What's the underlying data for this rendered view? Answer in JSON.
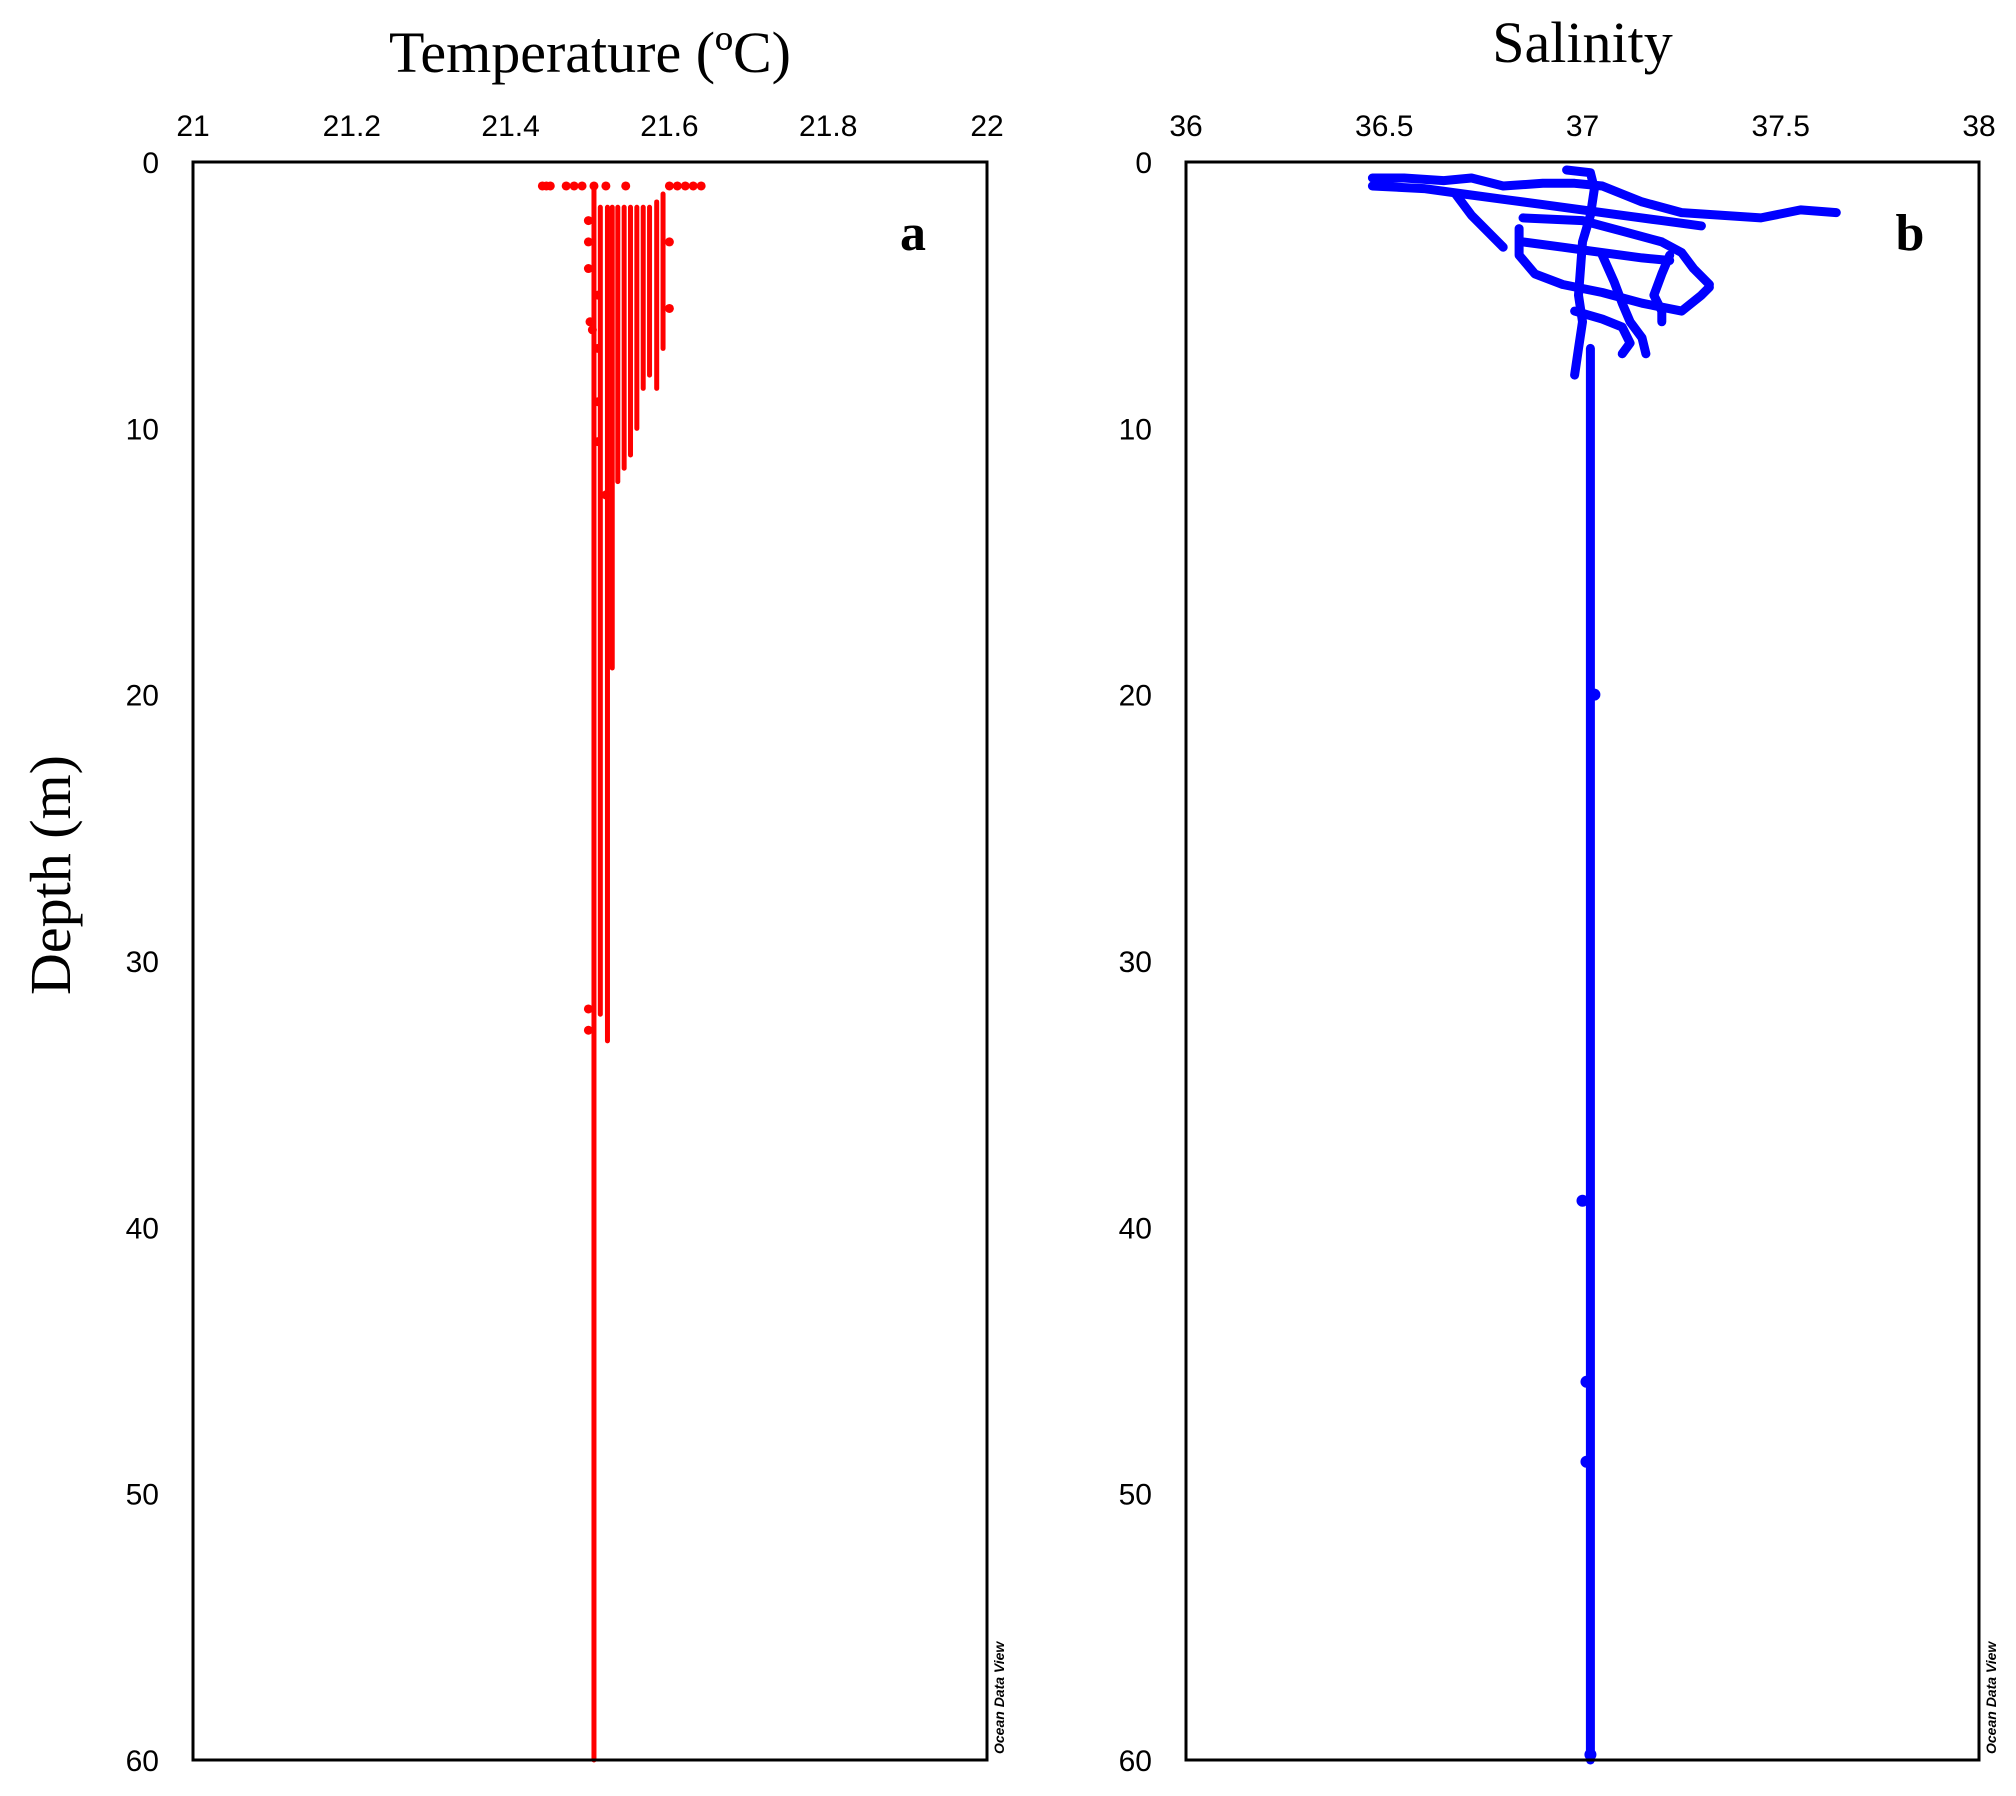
{
  "chart_data": [
    {
      "type": "scatter",
      "title": "Temperature (ºC)",
      "ylabel": "Depth (m)",
      "panel_label": "a",
      "watermark": "Ocean Data View",
      "xlim": [
        21,
        22
      ],
      "ylim": [
        0,
        60
      ],
      "y_inverted": true,
      "x_ticks": [
        "21",
        "21.2",
        "21.4",
        "21.6",
        "21.8",
        "22"
      ],
      "x_tick_values": [
        21,
        21.2,
        21.4,
        21.6,
        21.8,
        22
      ],
      "y_ticks": [
        "0",
        "10",
        "20",
        "30",
        "40",
        "50",
        "60"
      ],
      "y_tick_values": [
        0,
        10,
        20,
        30,
        40,
        50,
        60
      ],
      "color": "#ff0000",
      "columns": [
        {
          "x": 21.505,
          "ymin": 1.0,
          "ymax": 60.0
        },
        {
          "x": 21.513,
          "ymin": 1.7,
          "ymax": 32.0
        },
        {
          "x": 21.522,
          "ymin": 1.7,
          "ymax": 33.0
        },
        {
          "x": 21.528,
          "ymin": 1.7,
          "ymax": 19.0
        },
        {
          "x": 21.535,
          "ymin": 1.7,
          "ymax": 12.0
        },
        {
          "x": 21.543,
          "ymin": 1.7,
          "ymax": 11.5
        },
        {
          "x": 21.551,
          "ymin": 1.7,
          "ymax": 11.0
        },
        {
          "x": 21.559,
          "ymin": 1.7,
          "ymax": 10.0
        },
        {
          "x": 21.567,
          "ymin": 1.7,
          "ymax": 8.5
        },
        {
          "x": 21.575,
          "ymin": 1.7,
          "ymax": 8.0
        },
        {
          "x": 21.584,
          "ymin": 1.5,
          "ymax": 8.5
        },
        {
          "x": 21.592,
          "ymin": 1.2,
          "ymax": 7.0
        }
      ],
      "points": [
        {
          "x": 21.44,
          "y": 0.9
        },
        {
          "x": 21.445,
          "y": 0.9
        },
        {
          "x": 21.45,
          "y": 0.9
        },
        {
          "x": 21.47,
          "y": 0.9
        },
        {
          "x": 21.48,
          "y": 0.9
        },
        {
          "x": 21.49,
          "y": 0.9
        },
        {
          "x": 21.505,
          "y": 0.9
        },
        {
          "x": 21.52,
          "y": 0.9
        },
        {
          "x": 21.545,
          "y": 0.9
        },
        {
          "x": 21.6,
          "y": 0.9
        },
        {
          "x": 21.61,
          "y": 0.9
        },
        {
          "x": 21.62,
          "y": 0.9
        },
        {
          "x": 21.63,
          "y": 0.9
        },
        {
          "x": 21.64,
          "y": 0.9
        },
        {
          "x": 21.498,
          "y": 2.2
        },
        {
          "x": 21.498,
          "y": 3.0
        },
        {
          "x": 21.498,
          "y": 4.0
        },
        {
          "x": 21.5,
          "y": 6.0
        },
        {
          "x": 21.503,
          "y": 6.3
        },
        {
          "x": 21.51,
          "y": 5.0
        },
        {
          "x": 21.51,
          "y": 7.0
        },
        {
          "x": 21.51,
          "y": 9.0
        },
        {
          "x": 21.51,
          "y": 10.5
        },
        {
          "x": 21.52,
          "y": 12.5
        },
        {
          "x": 21.498,
          "y": 31.8
        },
        {
          "x": 21.498,
          "y": 32.6
        },
        {
          "x": 21.6,
          "y": 3.0
        },
        {
          "x": 21.6,
          "y": 5.5
        }
      ]
    },
    {
      "type": "scatter",
      "title": "Salinity",
      "panel_label": "b",
      "watermark": "Ocean Data View",
      "xlim": [
        36,
        38
      ],
      "ylim": [
        0,
        60
      ],
      "y_inverted": true,
      "x_ticks": [
        "36",
        "36.5",
        "37",
        "37.5",
        "38"
      ],
      "x_tick_values": [
        36,
        36.5,
        37,
        37.5,
        38
      ],
      "y_ticks": [
        "0",
        "10",
        "20",
        "30",
        "40",
        "50",
        "60"
      ],
      "y_tick_values": [
        0,
        10,
        20,
        30,
        40,
        50,
        60
      ],
      "color": "#0000ff",
      "lines": [
        [
          [
            37.02,
            7
          ],
          [
            37.02,
            60
          ]
        ],
        [
          [
            36.47,
            0.6
          ],
          [
            36.55,
            0.6
          ],
          [
            36.65,
            0.7
          ],
          [
            36.72,
            0.6
          ],
          [
            36.8,
            0.9
          ],
          [
            36.9,
            0.8
          ],
          [
            36.98,
            0.8
          ],
          [
            37.05,
            0.9
          ],
          [
            37.1,
            1.2
          ],
          [
            37.15,
            1.5
          ],
          [
            37.25,
            1.9
          ],
          [
            37.35,
            2.0
          ],
          [
            37.45,
            2.1
          ],
          [
            37.55,
            1.8
          ],
          [
            37.64,
            1.9
          ]
        ],
        [
          [
            36.47,
            0.9
          ],
          [
            36.6,
            1.0
          ],
          [
            36.7,
            1.2
          ],
          [
            36.8,
            1.4
          ],
          [
            36.9,
            1.6
          ],
          [
            37.0,
            1.8
          ],
          [
            37.1,
            2.0
          ],
          [
            37.2,
            2.2
          ],
          [
            37.3,
            2.4
          ]
        ],
        [
          [
            36.68,
            1.2
          ],
          [
            36.72,
            2.0
          ],
          [
            36.76,
            2.6
          ],
          [
            36.8,
            3.2
          ]
        ],
        [
          [
            36.85,
            2.1
          ],
          [
            37.0,
            2.2
          ],
          [
            37.1,
            2.6
          ],
          [
            37.2,
            3.0
          ],
          [
            37.25,
            3.4
          ],
          [
            37.28,
            4.0
          ],
          [
            37.32,
            4.6
          ]
        ],
        [
          [
            36.84,
            2.5
          ],
          [
            36.84,
            3.5
          ],
          [
            36.88,
            4.2
          ],
          [
            36.95,
            4.6
          ],
          [
            37.05,
            4.9
          ],
          [
            37.15,
            5.3
          ],
          [
            37.25,
            5.6
          ],
          [
            37.3,
            5.0
          ],
          [
            37.32,
            4.7
          ]
        ],
        [
          [
            36.85,
            3.0
          ],
          [
            36.95,
            3.2
          ],
          [
            37.05,
            3.4
          ],
          [
            37.15,
            3.6
          ],
          [
            37.22,
            3.7
          ]
        ],
        [
          [
            37.05,
            3.5
          ],
          [
            37.08,
            4.5
          ],
          [
            37.1,
            5.3
          ],
          [
            37.12,
            6.0
          ],
          [
            37.15,
            6.6
          ],
          [
            37.16,
            7.2
          ]
        ],
        [
          [
            37.22,
            3.5
          ],
          [
            37.2,
            4.2
          ],
          [
            37.18,
            5.0
          ],
          [
            37.2,
            5.6
          ],
          [
            37.2,
            6.0
          ]
        ],
        [
          [
            36.96,
            0.3
          ],
          [
            37.02,
            0.4
          ],
          [
            37.03,
            1.0
          ],
          [
            37.02,
            2.0
          ],
          [
            37.0,
            3.0
          ],
          [
            36.99,
            5.0
          ],
          [
            37.0,
            6.0
          ],
          [
            36.99,
            7.0
          ],
          [
            36.98,
            8.0
          ]
        ],
        [
          [
            36.98,
            5.6
          ],
          [
            37.05,
            5.9
          ],
          [
            37.1,
            6.2
          ],
          [
            37.12,
            6.8
          ],
          [
            37.1,
            7.2
          ]
        ]
      ],
      "points": [
        {
          "x": 37.03,
          "y": 20.0
        },
        {
          "x": 37.0,
          "y": 39.0
        },
        {
          "x": 37.01,
          "y": 45.8
        },
        {
          "x": 37.01,
          "y": 48.8
        },
        {
          "x": 37.02,
          "y": 59.8
        }
      ]
    }
  ]
}
